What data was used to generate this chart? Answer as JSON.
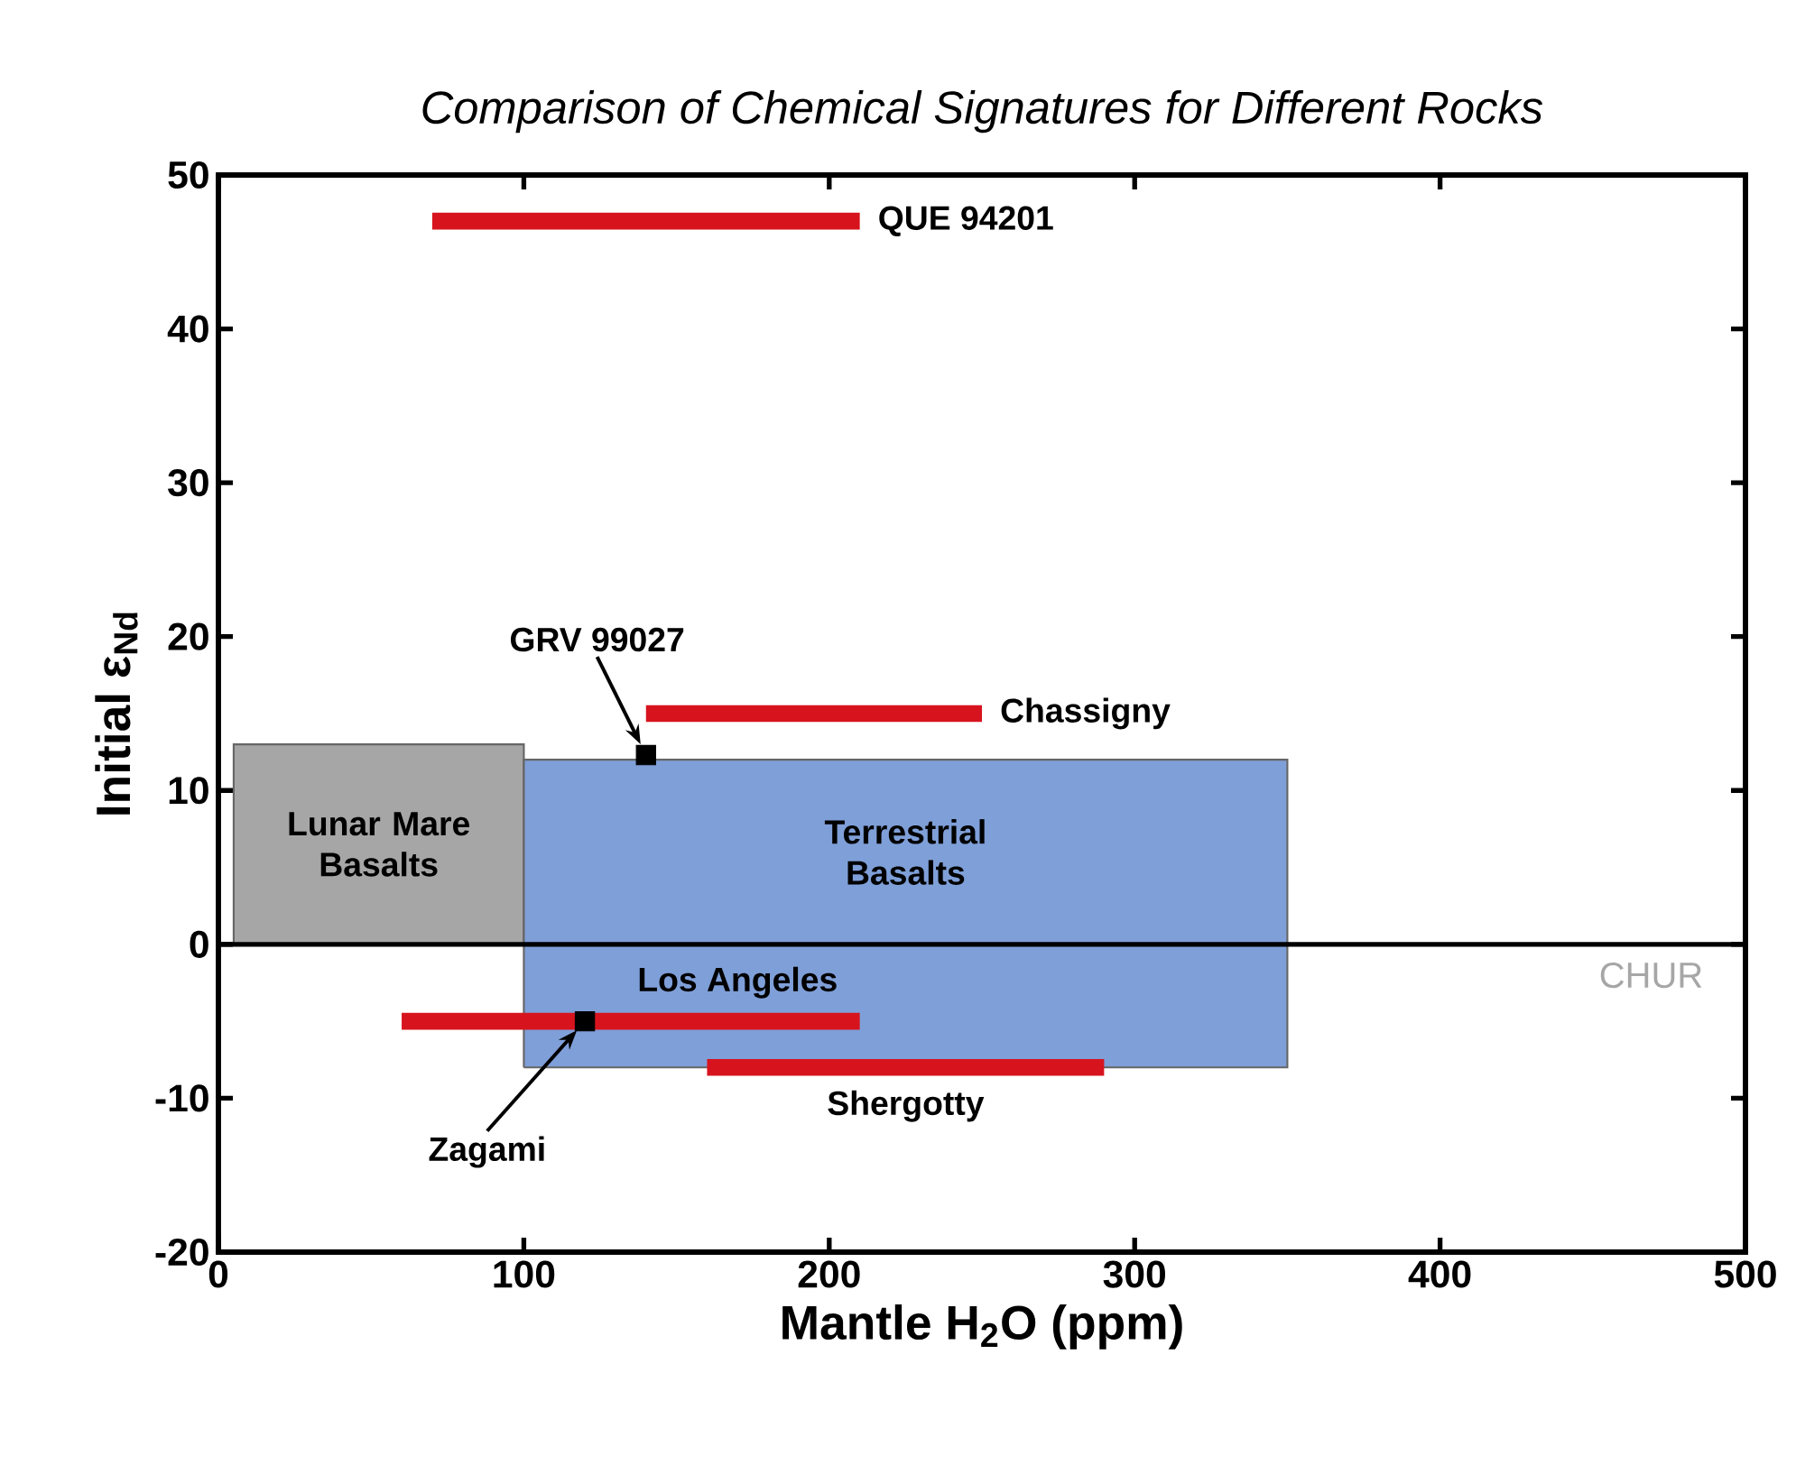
{
  "chart_data": {
    "type": "line",
    "title": "Comparison of Chemical Signatures for Different Rocks",
    "xlabel": "Mantle H$_{2}$O (ppm)",
    "ylabel": "Initial ε$_{Nd}$",
    "xlim": [
      0,
      500
    ],
    "ylim": [
      -20,
      50
    ],
    "xticks": [
      0,
      100,
      200,
      300,
      400,
      500
    ],
    "yticks": [
      -20,
      -10,
      0,
      10,
      20,
      30,
      40,
      50
    ],
    "series": [
      {
        "name": "Lunar Mare Basalts",
        "type": "area",
        "color": "#a6a6a6",
        "x": [
          5,
          5,
          100,
          100
        ],
        "values": [
          0,
          13,
          13,
          0
        ]
      },
      {
        "name": "Terrestrial Basalts",
        "type": "area",
        "color": "#7f9fd8",
        "x": [
          100,
          100,
          350,
          350
        ],
        "values": [
          -8,
          12,
          12,
          -8
        ]
      },
      {
        "name": "QUE 94201",
        "color": "#d7141e",
        "marker": "none",
        "x": [
          70,
          210
        ],
        "values": [
          47,
          47
        ]
      },
      {
        "name": "Chassigny",
        "color": "#d7141e",
        "marker": "none",
        "x": [
          140,
          250
        ],
        "values": [
          15,
          15
        ]
      },
      {
        "name": "Los Angeles",
        "color": "#d7141e",
        "marker": "none",
        "x": [
          60,
          210
        ],
        "values": [
          -5,
          -5
        ]
      },
      {
        "name": "Shergotty",
        "color": "#d7141e",
        "marker": "none",
        "x": [
          160,
          290
        ],
        "values": [
          -8,
          -8
        ]
      },
      {
        "name": "GRV 99027",
        "type": "scatter",
        "color": "#000000",
        "marker": "square",
        "x": [
          140
        ],
        "values": [
          12.3
        ]
      },
      {
        "name": "Zagami",
        "type": "scatter",
        "color": "#000000",
        "marker": "square",
        "x": [
          120
        ],
        "values": [
          -5
        ]
      }
    ],
    "ref_lines": [
      {
        "axis": "y",
        "value": 0,
        "label": "CHUR",
        "color": "#000000"
      }
    ]
  }
}
